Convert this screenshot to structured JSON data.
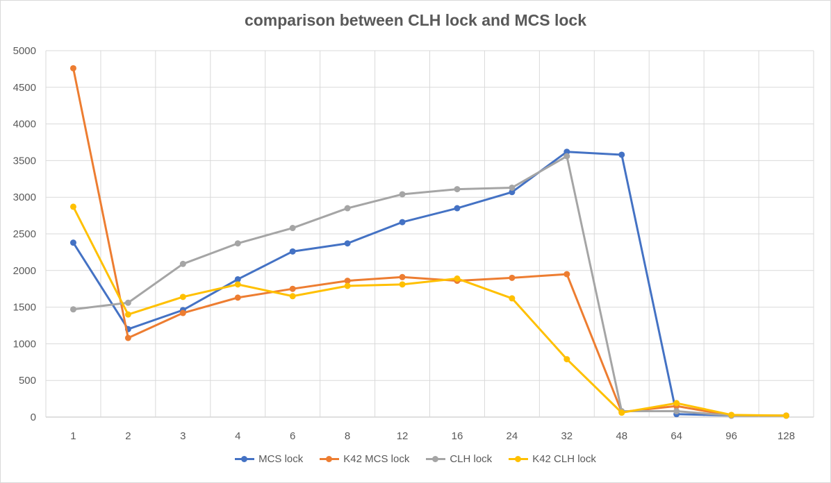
{
  "chart_data": {
    "type": "line",
    "title": "comparison between CLH lock and MCS lock",
    "xlabel": "",
    "ylabel": "",
    "categories": [
      "1",
      "2",
      "3",
      "4",
      "6",
      "8",
      "12",
      "16",
      "24",
      "32",
      "48",
      "64",
      "96",
      "128"
    ],
    "ylim": [
      0,
      5000
    ],
    "yticks": [
      0,
      500,
      1000,
      1500,
      2000,
      2500,
      3000,
      3500,
      4000,
      4500,
      5000
    ],
    "grid": true,
    "legend_position": "bottom",
    "series": [
      {
        "name": "MCS lock",
        "color": "#4472c4",
        "values": [
          2380,
          1200,
          1460,
          1880,
          2260,
          2370,
          2660,
          2850,
          3070,
          3620,
          3580,
          40,
          20,
          20
        ]
      },
      {
        "name": "K42 MCS lock",
        "color": "#ed7d31",
        "values": [
          4760,
          1080,
          1420,
          1630,
          1750,
          1860,
          1910,
          1860,
          1900,
          1950,
          70,
          150,
          20,
          20
        ]
      },
      {
        "name": "CLH lock",
        "color": "#a5a5a5",
        "values": [
          1470,
          1560,
          2090,
          2370,
          2580,
          2850,
          3040,
          3110,
          3130,
          3560,
          80,
          80,
          20,
          20
        ]
      },
      {
        "name": "K42 CLH lock",
        "color": "#ffc000",
        "values": [
          2870,
          1400,
          1640,
          1810,
          1650,
          1790,
          1810,
          1890,
          1620,
          790,
          60,
          190,
          30,
          20
        ]
      }
    ]
  }
}
